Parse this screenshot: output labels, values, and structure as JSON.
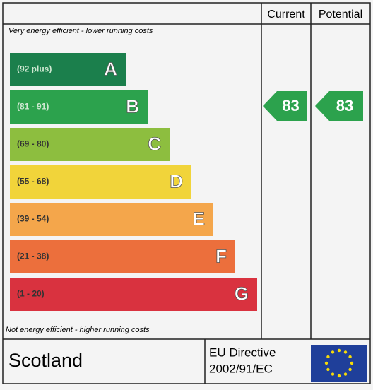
{
  "header": {
    "current": "Current",
    "potential": "Potential"
  },
  "top_note": "Very energy efficient - lower running costs",
  "bottom_note": "Not energy efficient - higher running costs",
  "bands": [
    {
      "range": "(92 plus)",
      "letter": "A",
      "color": "#1b7f4c"
    },
    {
      "range": "(81 - 91)",
      "letter": "B",
      "color": "#2ca24d"
    },
    {
      "range": "(69 - 80)",
      "letter": "C",
      "color": "#8dbe3f"
    },
    {
      "range": "(55 - 68)",
      "letter": "D",
      "color": "#f1d43a"
    },
    {
      "range": "(39 - 54)",
      "letter": "E",
      "color": "#f4a64b"
    },
    {
      "range": "(21 - 38)",
      "letter": "F",
      "color": "#ec6f3c"
    },
    {
      "range": "(1 - 20)",
      "letter": "G",
      "color": "#d9323f"
    }
  ],
  "current": {
    "value": 83,
    "band": 1
  },
  "potential": {
    "value": 83,
    "band": 1
  },
  "footer": {
    "region": "Scotland",
    "directive_line1": "EU Directive",
    "directive_line2": "2002/91/EC"
  }
}
